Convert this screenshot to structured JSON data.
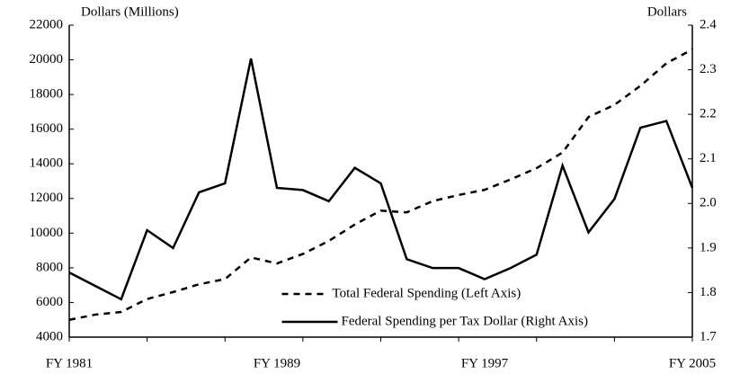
{
  "chart_data": {
    "type": "line",
    "y_label": "Dollars (Millions)",
    "y2_label": "Dollars",
    "categories": [
      "FY 1981",
      null,
      null,
      null,
      null,
      null,
      null,
      null,
      "FY 1989",
      null,
      null,
      null,
      null,
      null,
      null,
      null,
      "FY 1997",
      null,
      null,
      null,
      null,
      null,
      null,
      null,
      "FY 2005"
    ],
    "series": [
      {
        "name": "Total Federal Spending (Left Axis)",
        "color": "#000000",
        "dash": "dashed",
        "values": [
          5000,
          5300,
          5450,
          6200,
          6600,
          7050,
          7350,
          8600,
          8250,
          8800,
          9550,
          10500,
          11300,
          11200,
          11850,
          12200,
          12500,
          13100,
          13750,
          14650,
          16700,
          17400,
          18500,
          19800,
          20600
        ]
      },
      {
        "name": "Federal Spending per Tax Dollar (Right Axis)",
        "color": "#000000",
        "dash": "solid",
        "axis": "y2",
        "values": [
          1.845,
          1.815,
          1.785,
          1.94,
          1.9,
          2.025,
          2.045,
          2.325,
          2.035,
          2.03,
          2.005,
          2.08,
          2.045,
          1.875,
          1.855,
          1.855,
          1.83,
          1.855,
          1.885,
          2.085,
          1.935,
          2.01,
          2.17,
          2.185,
          2.035
        ]
      }
    ],
    "ylim": [
      4000,
      22000
    ],
    "yticks": [
      4000,
      6000,
      8000,
      10000,
      12000,
      14000,
      16000,
      18000,
      20000,
      22000
    ],
    "y2lim": [
      1.7,
      2.4
    ],
    "y2ticks": [
      1.7,
      1.8,
      1.9,
      {
        "value": 2,
        "label": "2.0"
      },
      2.1,
      2.2,
      2.3,
      2.4
    ],
    "legend": "lower center"
  }
}
